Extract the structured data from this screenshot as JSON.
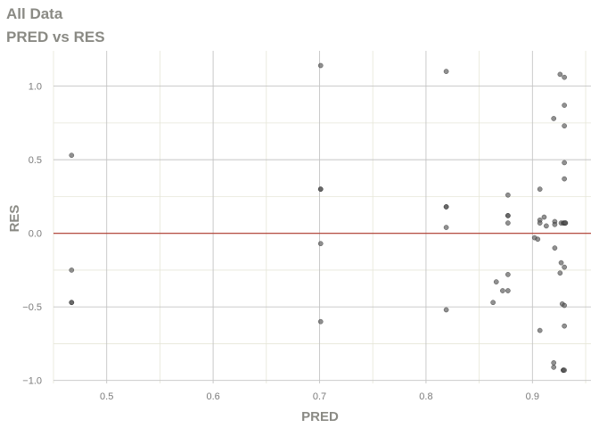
{
  "chart_data": {
    "type": "scatter",
    "title": "All Data",
    "subtitle": "PRED vs RES",
    "xlabel": "PRED",
    "ylabel": "RES",
    "xlim": [
      0.45,
      0.955
    ],
    "ylim": [
      -1.02,
      1.24
    ],
    "xticks": [
      0.5,
      0.6,
      0.7,
      0.8,
      0.9
    ],
    "xtick_labels": [
      "0.5",
      "0.6",
      "0.7",
      "0.8",
      "0.9"
    ],
    "yticks": [
      -1.0,
      -0.5,
      0.0,
      0.5,
      1.0
    ],
    "ytick_labels": [
      "−1.0",
      "−0.5",
      "0.0",
      "0.5",
      "1.0"
    ],
    "grid": true,
    "reference_line": {
      "y": 0,
      "color": "#b03a2e"
    },
    "point_color": "#555555",
    "points": [
      {
        "x": 0.467,
        "y": 0.53
      },
      {
        "x": 0.467,
        "y": -0.25
      },
      {
        "x": 0.467,
        "y": -0.47
      },
      {
        "x": 0.467,
        "y": -0.47
      },
      {
        "x": 0.701,
        "y": 1.14
      },
      {
        "x": 0.701,
        "y": 0.3
      },
      {
        "x": 0.701,
        "y": 0.3
      },
      {
        "x": 0.701,
        "y": -0.07
      },
      {
        "x": 0.701,
        "y": -0.6
      },
      {
        "x": 0.819,
        "y": 1.1
      },
      {
        "x": 0.819,
        "y": 0.18
      },
      {
        "x": 0.819,
        "y": 0.18
      },
      {
        "x": 0.819,
        "y": 0.04
      },
      {
        "x": 0.819,
        "y": -0.52
      },
      {
        "x": 0.863,
        "y": -0.47
      },
      {
        "x": 0.866,
        "y": -0.33
      },
      {
        "x": 0.872,
        "y": -0.39
      },
      {
        "x": 0.877,
        "y": 0.26
      },
      {
        "x": 0.877,
        "y": 0.12
      },
      {
        "x": 0.877,
        "y": 0.12
      },
      {
        "x": 0.877,
        "y": 0.07
      },
      {
        "x": 0.877,
        "y": -0.28
      },
      {
        "x": 0.877,
        "y": -0.39
      },
      {
        "x": 0.902,
        "y": -0.03
      },
      {
        "x": 0.905,
        "y": -0.04
      },
      {
        "x": 0.907,
        "y": 0.3
      },
      {
        "x": 0.907,
        "y": 0.09
      },
      {
        "x": 0.907,
        "y": 0.07
      },
      {
        "x": 0.907,
        "y": -0.66
      },
      {
        "x": 0.911,
        "y": 0.11
      },
      {
        "x": 0.913,
        "y": 0.05
      },
      {
        "x": 0.92,
        "y": 0.78
      },
      {
        "x": 0.921,
        "y": 0.08
      },
      {
        "x": 0.921,
        "y": 0.06
      },
      {
        "x": 0.921,
        "y": -0.1
      },
      {
        "x": 0.92,
        "y": -0.88
      },
      {
        "x": 0.92,
        "y": -0.91
      },
      {
        "x": 0.926,
        "y": 1.08
      },
      {
        "x": 0.926,
        "y": -0.27
      },
      {
        "x": 0.927,
        "y": -0.2
      },
      {
        "x": 0.927,
        "y": 0.07
      },
      {
        "x": 0.928,
        "y": -0.48
      },
      {
        "x": 0.929,
        "y": 0.07
      },
      {
        "x": 0.929,
        "y": -0.93
      },
      {
        "x": 0.929,
        "y": -0.93
      },
      {
        "x": 0.93,
        "y": 1.06
      },
      {
        "x": 0.93,
        "y": 0.87
      },
      {
        "x": 0.93,
        "y": 0.73
      },
      {
        "x": 0.93,
        "y": 0.48
      },
      {
        "x": 0.93,
        "y": 0.37
      },
      {
        "x": 0.93,
        "y": 0.07
      },
      {
        "x": 0.93,
        "y": -0.23
      },
      {
        "x": 0.93,
        "y": -0.49
      },
      {
        "x": 0.93,
        "y": -0.63
      },
      {
        "x": 0.93,
        "y": -0.93
      },
      {
        "x": 0.931,
        "y": 0.07
      },
      {
        "x": 0.931,
        "y": 0.07
      }
    ]
  }
}
